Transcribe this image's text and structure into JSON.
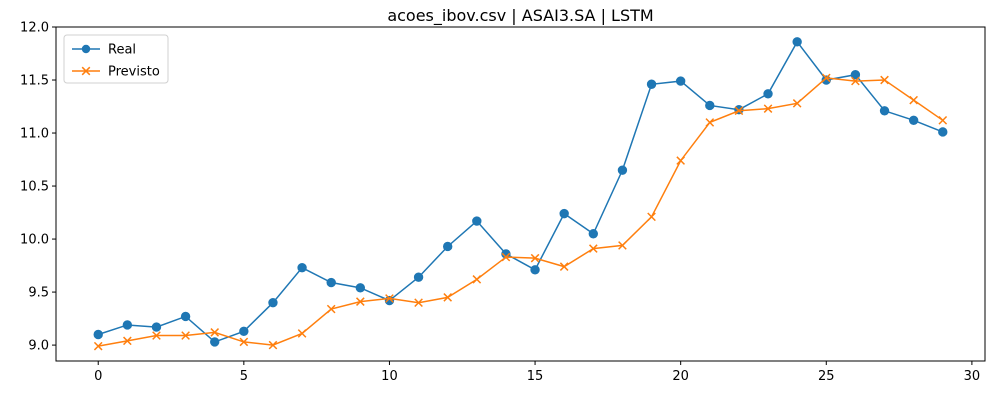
{
  "chart_data": {
    "type": "line",
    "title": "acoes_ibov.csv | ASAI3.SA | LSTM",
    "xlabel": "",
    "ylabel": "",
    "xlim": [
      -1.45,
      30.45
    ],
    "ylim": [
      8.85,
      12.0
    ],
    "xticks": [
      0,
      5,
      10,
      15,
      20,
      25,
      30
    ],
    "yticks": [
      9.0,
      9.5,
      10.0,
      10.5,
      11.0,
      11.5,
      12.0
    ],
    "legend_position": "upper-left",
    "grid": false,
    "x": [
      0,
      1,
      2,
      3,
      4,
      5,
      6,
      7,
      8,
      9,
      10,
      11,
      12,
      13,
      14,
      15,
      16,
      17,
      18,
      19,
      20,
      21,
      22,
      23,
      24,
      25,
      26,
      27,
      28,
      29
    ],
    "series": [
      {
        "name": "Real",
        "color": "#1f77b4",
        "marker": "circle",
        "values": [
          9.1,
          9.19,
          9.17,
          9.27,
          9.03,
          9.13,
          9.4,
          9.73,
          9.59,
          9.54,
          9.42,
          9.64,
          9.93,
          10.17,
          9.86,
          9.71,
          10.24,
          10.05,
          10.65,
          11.46,
          11.49,
          11.26,
          11.22,
          11.37,
          11.86,
          11.5,
          11.55,
          11.21,
          11.12,
          11.01
        ]
      },
      {
        "name": "Previsto",
        "color": "#ff7f0e",
        "marker": "x",
        "values": [
          8.99,
          9.04,
          9.09,
          9.09,
          9.12,
          9.03,
          9.0,
          9.11,
          9.34,
          9.41,
          9.44,
          9.4,
          9.45,
          9.62,
          9.83,
          9.82,
          9.74,
          9.91,
          9.94,
          10.21,
          10.74,
          11.1,
          11.21,
          11.23,
          11.28,
          11.52,
          11.49,
          11.5,
          11.31,
          11.12
        ]
      }
    ]
  }
}
